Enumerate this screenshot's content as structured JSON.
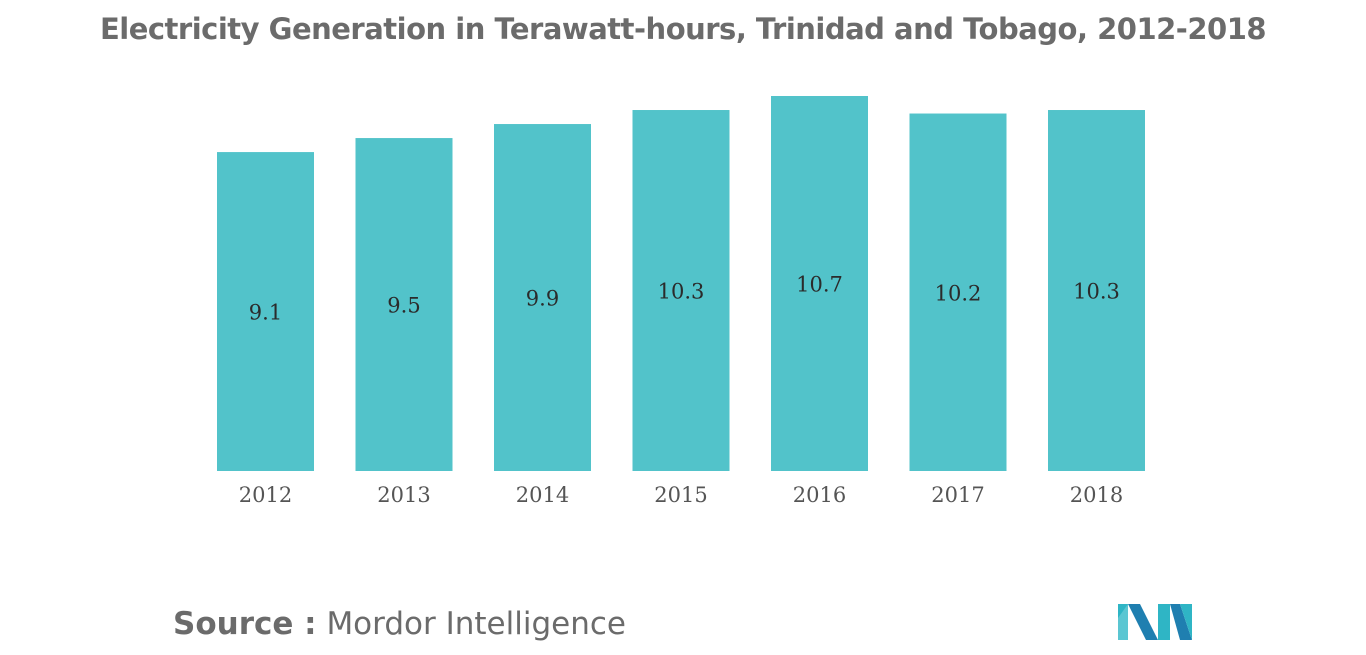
{
  "title": "Electricity Generation in Terawatt-hours, Trinidad and Tobago, 2012-2018",
  "source": {
    "label": "Source :",
    "value": "Mordor Intelligence"
  },
  "logo": {
    "icon": "mordor-intelligence-logo",
    "colors": [
      "#2fb5c5",
      "#1f7fb0",
      "#7fd3dc"
    ]
  },
  "colors": {
    "bar": "#52c3ca",
    "title_text": "#6b6b6b",
    "label_text": "#2b2b2b",
    "tick_text": "#555555"
  },
  "chart_data": {
    "type": "bar",
    "title": "Electricity Generation in Terawatt-hours, Trinidad and Tobago, 2012-2018",
    "categories": [
      "2012",
      "2013",
      "2014",
      "2015",
      "2016",
      "2017",
      "2018"
    ],
    "values": [
      9.1,
      9.5,
      9.9,
      10.3,
      10.7,
      10.2,
      10.3
    ],
    "value_labels": [
      "9.1",
      "9.5",
      "9.9",
      "10.3",
      "10.7",
      "10.2",
      "10.3"
    ],
    "xlabel": "",
    "ylabel": "",
    "ylim": [
      0,
      10.7
    ],
    "grid": false,
    "legend": "none"
  }
}
